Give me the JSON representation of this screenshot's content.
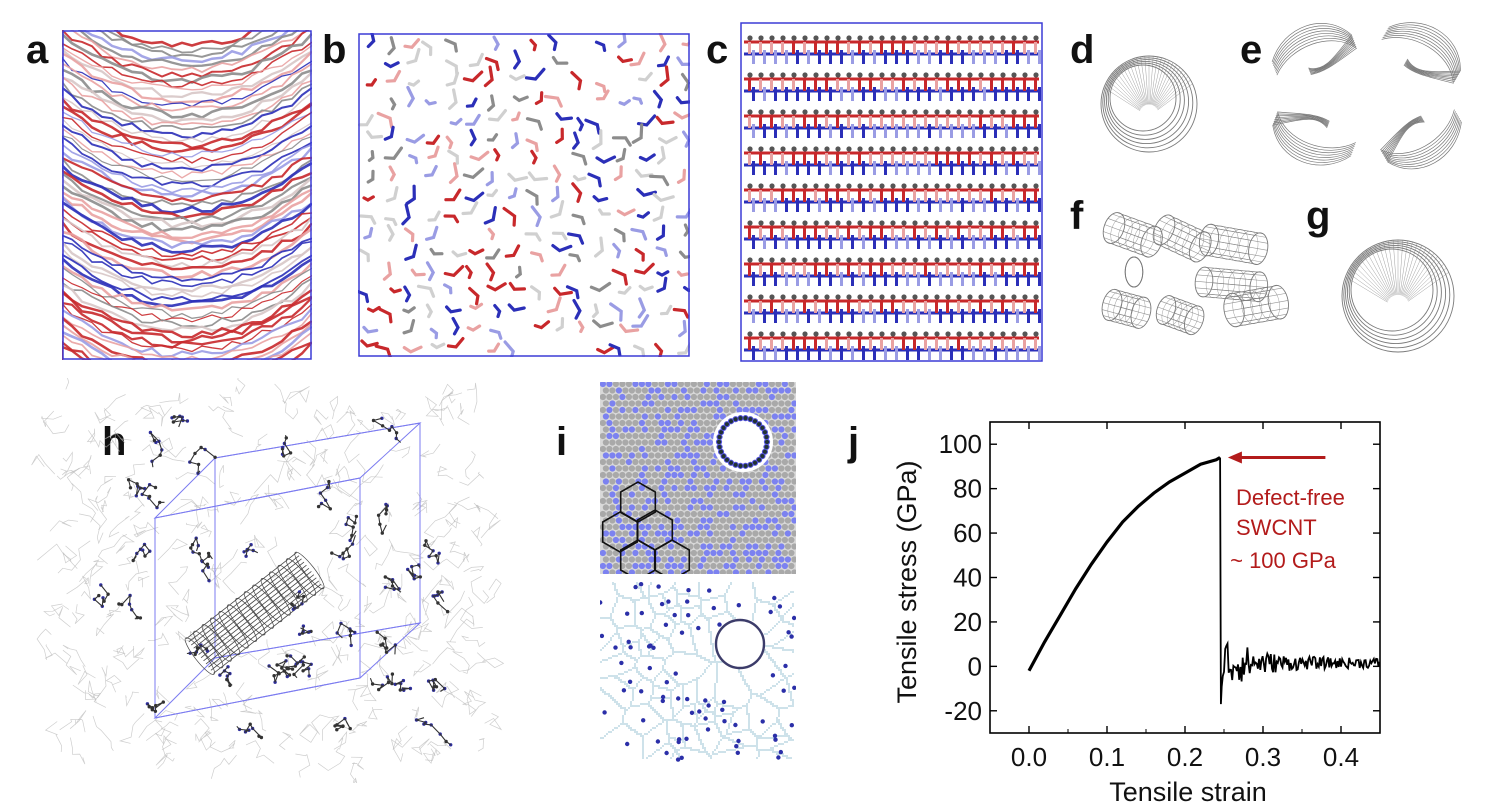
{
  "panel_labels": [
    "a",
    "b",
    "c",
    "d",
    "e",
    "f",
    "g",
    "h",
    "i",
    "j"
  ],
  "colors": {
    "blue": "#2b2fb8",
    "red": "#c8282b",
    "light_red": "#e9a2a2",
    "light_blue": "#9a9ce4",
    "gray": "#8c8c8c",
    "frame": "#3b3bd6",
    "tube": "#7a7a7a",
    "voronoi": "#7fb4c9",
    "dot": "#2b2fa8",
    "stress_curve": "#000000",
    "annotation": "#b31b1b"
  },
  "icons": {
    "arrow": "left-arrow-icon"
  },
  "chart_data": {
    "type": "line",
    "title": "",
    "xlabel": "Tensile strain",
    "ylabel": "Tensile stress (GPa)",
    "xlim": [
      -0.05,
      0.45
    ],
    "ylim": [
      -30,
      110
    ],
    "xticks": [
      0.0,
      0.1,
      0.2,
      0.3,
      0.4
    ],
    "xtick_labels": [
      "0.0",
      "0.1",
      "0.2",
      "0.3",
      "0.4"
    ],
    "yticks": [
      -20,
      0,
      20,
      40,
      60,
      80,
      100
    ],
    "ytick_labels": [
      "-20",
      "0",
      "20",
      "40",
      "60",
      "80",
      "100"
    ],
    "series": [
      {
        "name": "Defect-free SWCNT",
        "x": [
          0.0,
          0.02,
          0.04,
          0.06,
          0.08,
          0.1,
          0.12,
          0.14,
          0.16,
          0.18,
          0.2,
          0.22,
          0.24,
          0.245,
          0.246,
          0.248,
          0.25,
          0.26,
          0.28,
          0.3,
          0.35,
          0.4,
          0.45
        ],
        "y": [
          -2,
          11,
          23,
          35,
          46,
          56,
          65,
          72,
          78,
          83,
          87,
          91,
          93,
          94,
          5,
          -17,
          10,
          6,
          3,
          2,
          2,
          1,
          1
        ]
      }
    ],
    "annotations": [
      {
        "text": [
          "Defect-free",
          "SWCNT",
          " ~ 100 GPa"
        ]
      }
    ]
  }
}
